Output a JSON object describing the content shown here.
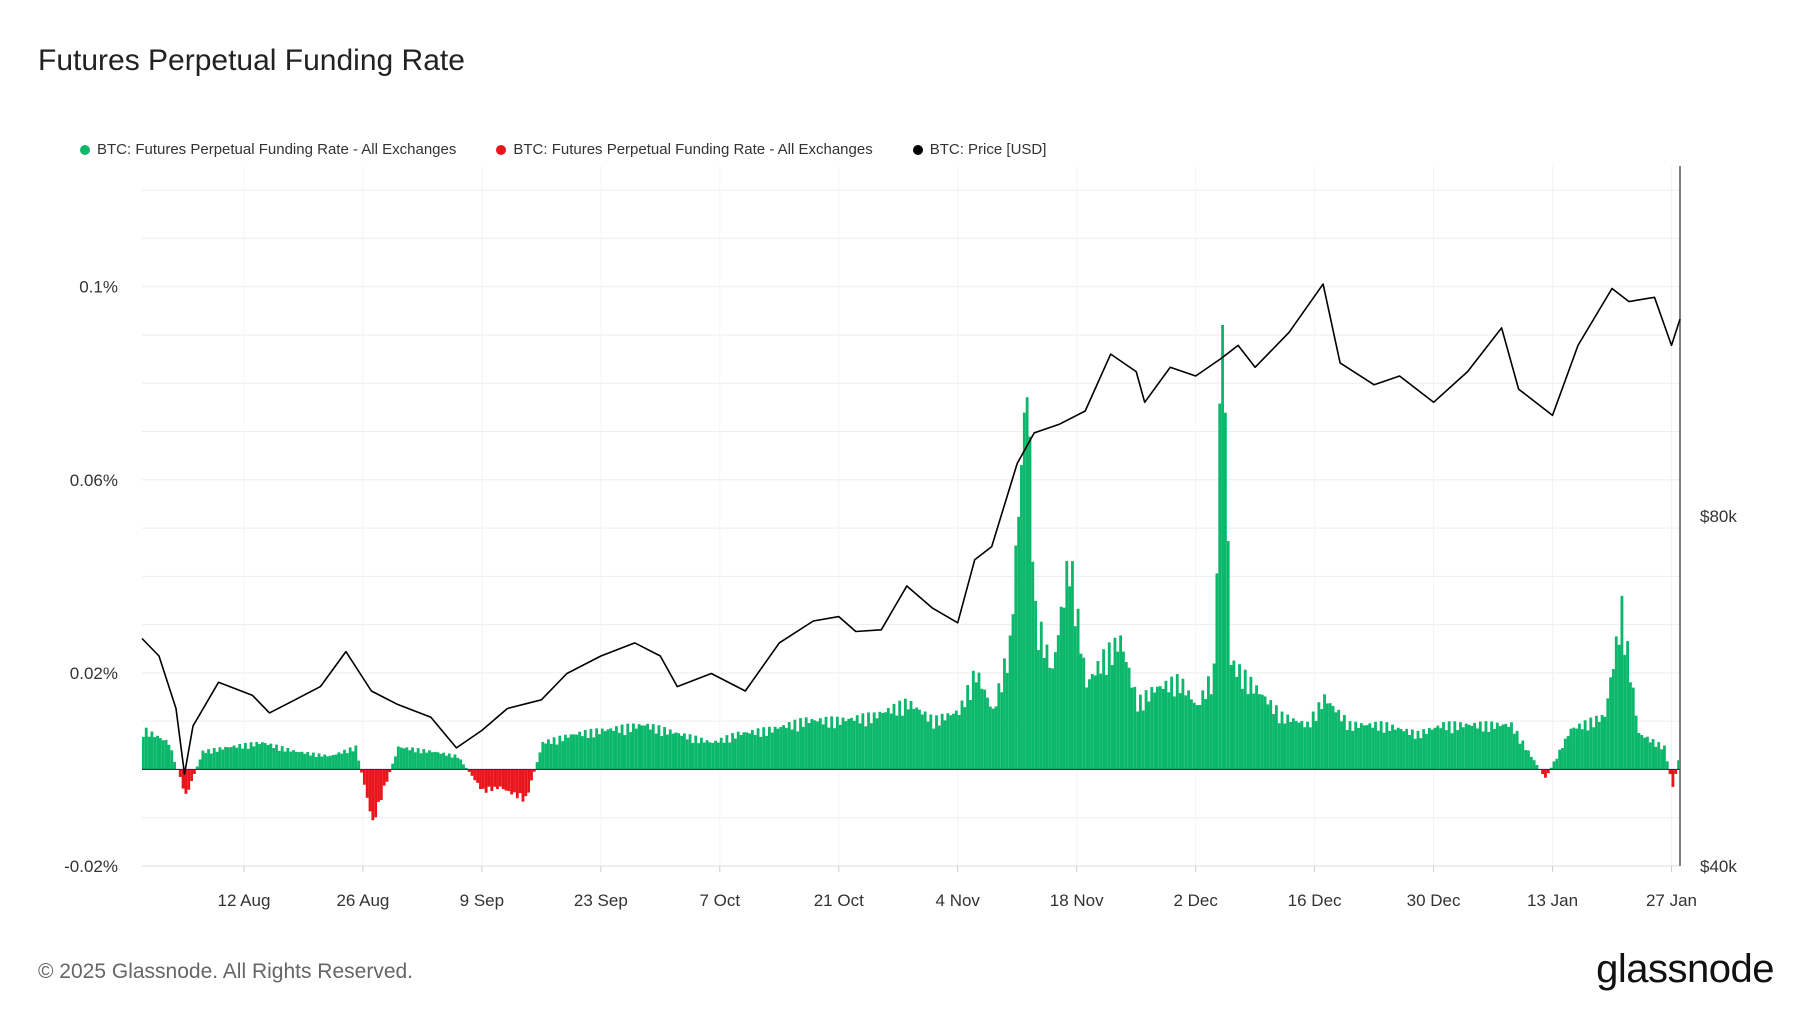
{
  "title": "Futures Perpetual Funding Rate",
  "legend": [
    {
      "label": "BTC: Futures Perpetual Funding Rate - All Exchanges",
      "color": "#0bb86b"
    },
    {
      "label": "BTC: Futures Perpetual Funding Rate - All Exchanges",
      "color": "#e8161c"
    },
    {
      "label": "BTC: Price [USD]",
      "color": "#000000"
    }
  ],
  "footer": "© 2025 Glassnode. All Rights Reserved.",
  "brand": "glassnode",
  "chart_data": {
    "type": "area",
    "title": "Futures Perpetual Funding Rate",
    "x_tick_labels": [
      "12 Aug",
      "26 Aug",
      "9 Sep",
      "23 Sep",
      "7 Oct",
      "21 Oct",
      "4 Nov",
      "18 Nov",
      "2 Dec",
      "16 Dec",
      "30 Dec",
      "13 Jan",
      "27 Jan"
    ],
    "x_range": [
      "2024-07-31",
      "2025-01-28"
    ],
    "y_left_range": [
      -0.0002,
      0.00125
    ],
    "y_left_ticks": [
      {
        "value": -0.0002,
        "label": "-0.02%"
      },
      {
        "value": 0.0002,
        "label": "0.02%"
      },
      {
        "value": 0.0006,
        "label": "0.06%"
      },
      {
        "value": 0.001,
        "label": "0.1%"
      }
    ],
    "y_right_range": [
      40000,
      120000
    ],
    "y_right_ticks": [
      {
        "value": 40000,
        "label": "$40k"
      },
      {
        "value": 80000,
        "label": "$80k"
      }
    ],
    "grid": true,
    "series": [
      {
        "name": "BTC: Futures Perpetual Funding Rate - All Exchanges",
        "axis": "left",
        "color": "#0bb86b",
        "points": [
          [
            "2024-07-31",
            9e-05
          ],
          [
            "2024-08-03",
            6e-05
          ],
          [
            "2024-08-05",
            -6e-05
          ],
          [
            "2024-08-07",
            4e-05
          ],
          [
            "2024-08-10",
            5e-05
          ],
          [
            "2024-08-14",
            6e-05
          ],
          [
            "2024-08-18",
            4e-05
          ],
          [
            "2024-08-22",
            3e-05
          ],
          [
            "2024-08-25",
            5e-05
          ],
          [
            "2024-08-27",
            -0.00012
          ],
          [
            "2024-08-30",
            5e-05
          ],
          [
            "2024-09-03",
            4e-05
          ],
          [
            "2024-09-06",
            3e-05
          ],
          [
            "2024-09-09",
            -5e-05
          ],
          [
            "2024-09-11",
            -4e-05
          ],
          [
            "2024-09-14",
            -7e-05
          ],
          [
            "2024-09-16",
            6e-05
          ],
          [
            "2024-09-20",
            8e-05
          ],
          [
            "2024-09-24",
            9e-05
          ],
          [
            "2024-09-28",
            0.0001
          ],
          [
            "2024-10-02",
            8e-05
          ],
          [
            "2024-10-06",
            6e-05
          ],
          [
            "2024-10-09",
            8e-05
          ],
          [
            "2024-10-13",
            9e-05
          ],
          [
            "2024-10-17",
            0.00011
          ],
          [
            "2024-10-21",
            0.00011
          ],
          [
            "2024-10-25",
            0.00012
          ],
          [
            "2024-10-29",
            0.00015
          ],
          [
            "2024-11-01",
            0.00011
          ],
          [
            "2024-11-04",
            0.00013
          ],
          [
            "2024-11-06",
            0.00022
          ],
          [
            "2024-11-08",
            0.00013
          ],
          [
            "2024-11-10",
            0.00028
          ],
          [
            "2024-11-12",
            0.00088
          ],
          [
            "2024-11-13",
            0.00035
          ],
          [
            "2024-11-15",
            0.00022
          ],
          [
            "2024-11-17",
            0.00048
          ],
          [
            "2024-11-19",
            0.00019
          ],
          [
            "2024-11-21",
            0.00025
          ],
          [
            "2024-11-23",
            0.00029
          ],
          [
            "2024-11-25",
            0.00015
          ],
          [
            "2024-11-27",
            0.00018
          ],
          [
            "2024-11-30",
            0.0002
          ],
          [
            "2024-12-02",
            0.00014
          ],
          [
            "2024-12-04",
            0.00022
          ],
          [
            "2024-12-05",
            0.00105
          ],
          [
            "2024-12-06",
            0.00024
          ],
          [
            "2024-12-09",
            0.00018
          ],
          [
            "2024-12-12",
            0.00012
          ],
          [
            "2024-12-15",
            0.0001
          ],
          [
            "2024-12-17",
            0.00016
          ],
          [
            "2024-12-20",
            0.0001
          ],
          [
            "2024-12-24",
            0.0001
          ],
          [
            "2024-12-28",
            8e-05
          ],
          [
            "2024-12-31",
            0.0001
          ],
          [
            "2025-01-04",
            0.0001
          ],
          [
            "2025-01-08",
            0.0001
          ],
          [
            "2025-01-12",
            -2e-05
          ],
          [
            "2025-01-15",
            9e-05
          ],
          [
            "2025-01-19",
            0.00012
          ],
          [
            "2025-01-21",
            0.00036
          ],
          [
            "2025-01-23",
            8e-05
          ],
          [
            "2025-01-26",
            5e-05
          ],
          [
            "2025-01-27",
            -4e-05
          ],
          [
            "2025-01-28",
            5e-05
          ]
        ]
      },
      {
        "name": "BTC: Price [USD]",
        "axis": "right",
        "color": "#000000",
        "points": [
          [
            "2024-07-31",
            66000
          ],
          [
            "2024-08-02",
            64000
          ],
          [
            "2024-08-04",
            58000
          ],
          [
            "2024-08-05",
            50500
          ],
          [
            "2024-08-06",
            56000
          ],
          [
            "2024-08-09",
            61000
          ],
          [
            "2024-08-13",
            59500
          ],
          [
            "2024-08-15",
            57500
          ],
          [
            "2024-08-18",
            59000
          ],
          [
            "2024-08-21",
            60500
          ],
          [
            "2024-08-24",
            64500
          ],
          [
            "2024-08-27",
            60000
          ],
          [
            "2024-08-30",
            58500
          ],
          [
            "2024-09-03",
            57000
          ],
          [
            "2024-09-06",
            53500
          ],
          [
            "2024-09-09",
            55500
          ],
          [
            "2024-09-12",
            58000
          ],
          [
            "2024-09-16",
            59000
          ],
          [
            "2024-09-19",
            62000
          ],
          [
            "2024-09-23",
            64000
          ],
          [
            "2024-09-27",
            65500
          ],
          [
            "2024-09-30",
            64000
          ],
          [
            "2024-10-02",
            60500
          ],
          [
            "2024-10-06",
            62000
          ],
          [
            "2024-10-10",
            60000
          ],
          [
            "2024-10-14",
            65500
          ],
          [
            "2024-10-18",
            68000
          ],
          [
            "2024-10-21",
            68500
          ],
          [
            "2024-10-23",
            66800
          ],
          [
            "2024-10-26",
            67000
          ],
          [
            "2024-10-29",
            72000
          ],
          [
            "2024-11-01",
            69500
          ],
          [
            "2024-11-04",
            67800
          ],
          [
            "2024-11-06",
            75000
          ],
          [
            "2024-11-08",
            76500
          ],
          [
            "2024-11-11",
            86000
          ],
          [
            "2024-11-13",
            89500
          ],
          [
            "2024-11-16",
            90500
          ],
          [
            "2024-11-19",
            92000
          ],
          [
            "2024-11-22",
            98500
          ],
          [
            "2024-11-25",
            96500
          ],
          [
            "2024-11-26",
            93000
          ],
          [
            "2024-11-29",
            97000
          ],
          [
            "2024-12-02",
            96000
          ],
          [
            "2024-12-05",
            98000
          ],
          [
            "2024-12-07",
            99500
          ],
          [
            "2024-12-09",
            97000
          ],
          [
            "2024-12-13",
            101000
          ],
          [
            "2024-12-17",
            106500
          ],
          [
            "2024-12-19",
            97500
          ],
          [
            "2024-12-23",
            95000
          ],
          [
            "2024-12-26",
            96000
          ],
          [
            "2024-12-30",
            93000
          ],
          [
            "2025-01-03",
            96500
          ],
          [
            "2025-01-07",
            101500
          ],
          [
            "2025-01-09",
            94500
          ],
          [
            "2025-01-13",
            91500
          ],
          [
            "2025-01-16",
            99500
          ],
          [
            "2025-01-20",
            106000
          ],
          [
            "2025-01-22",
            104500
          ],
          [
            "2025-01-25",
            105000
          ],
          [
            "2025-01-27",
            99500
          ],
          [
            "2025-01-28",
            102500
          ]
        ]
      }
    ]
  }
}
